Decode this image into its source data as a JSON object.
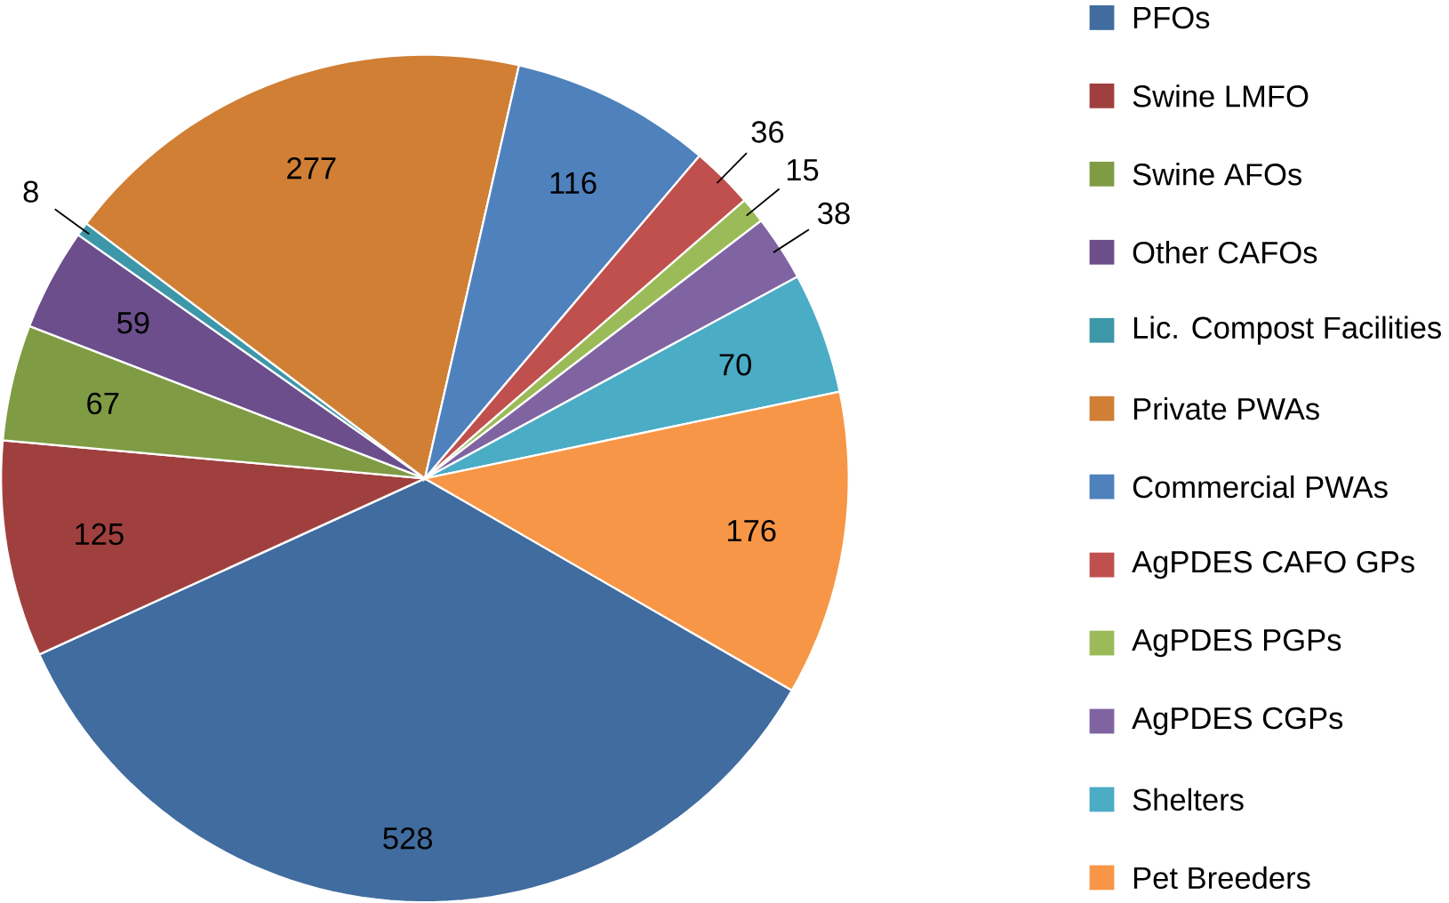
{
  "chart_data": {
    "type": "pie",
    "categories": [
      "PFOs",
      "Swine LMFO",
      "Swine AFOs",
      "Other CAFOs",
      "Lic. Compost Facilities",
      "Private PWAs",
      "Commercial PWAs",
      "AgPDES CAFO GPs",
      "AgPDES PGPs",
      "AgPDES CGPs",
      "Shelters",
      "Pet Breeders"
    ],
    "values": [
      528,
      125,
      67,
      59,
      8,
      277,
      116,
      36,
      15,
      38,
      70,
      176
    ],
    "colors": [
      "#416c9f",
      "#a0403e",
      "#7f9c45",
      "#6b4e8b",
      "#3d97a9",
      "#d07f35",
      "#4f81bd",
      "#c0504d",
      "#9bbb59",
      "#8064a2",
      "#4bacc6",
      "#f79646"
    ],
    "data_labels": true,
    "legend": "right"
  }
}
